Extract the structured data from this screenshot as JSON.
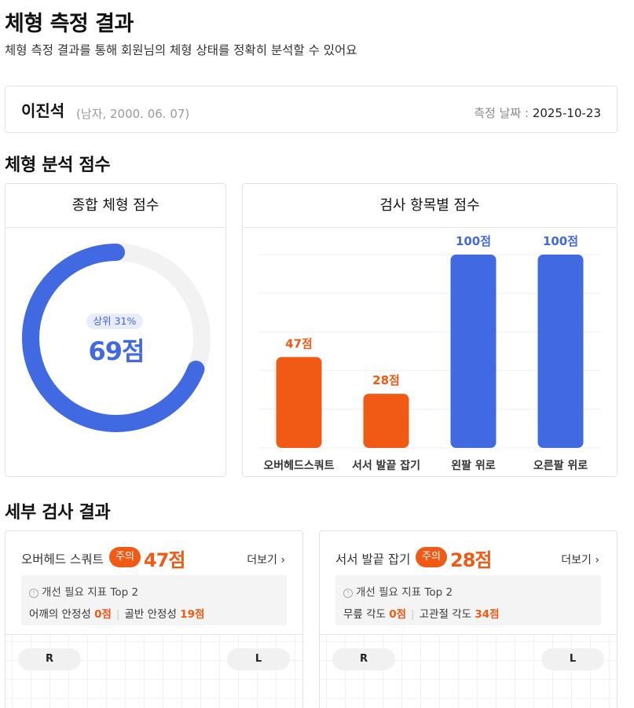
{
  "page": {
    "title": "체형 측정 결과",
    "subtitle": "체형 측정 결과를 통해 회원님의 체형 상태를 정확히 분석할 수 있어요"
  },
  "profile": {
    "name": "이진석",
    "meta": "(남자, 2000. 06. 07)",
    "date_label": "측정 날짜 :",
    "date_value": "2025-10-23"
  },
  "sections": {
    "analysis_title": "체형 분석 점수",
    "detail_title": "세부 검사 결과"
  },
  "total_panel": {
    "title": "종합 체형 점수",
    "rank": "상위 31%",
    "score": "69점",
    "score_value": 69,
    "score_max": 100,
    "accent_color": "#4169e1",
    "track_color": "#f2f2f2"
  },
  "item_panel": {
    "title": "검사 항목별 점수"
  },
  "chart_data": {
    "type": "bar",
    "title": "검사 항목별 점수",
    "categories": [
      "오버헤드스쿼트",
      "서서 발끝 잡기",
      "왼팔 위로",
      "오른팔 위로"
    ],
    "values": [
      47,
      28,
      100,
      100
    ],
    "value_labels": [
      "47점",
      "28점",
      "100점",
      "100점"
    ],
    "colors": [
      "#f05a14",
      "#f05a14",
      "#4169e1",
      "#4169e1"
    ],
    "ylim": [
      0,
      100
    ],
    "grid": true
  },
  "details": [
    {
      "name": "오버헤드 스쿼트",
      "badge": "주의",
      "score": "47점",
      "more": "더보기",
      "improve_title": "개선 필요 지표 Top 2",
      "metrics": [
        {
          "label": "어깨의 안정성",
          "value": "0점"
        },
        {
          "label": "골반 안정성",
          "value": "19점"
        }
      ],
      "left_label": "R",
      "right_label": "L"
    },
    {
      "name": "서서 발끝 잡기",
      "badge": "주의",
      "score": "28점",
      "more": "더보기",
      "improve_title": "개선 필요 지표 Top 2",
      "metrics": [
        {
          "label": "무릎 각도",
          "value": "0점"
        },
        {
          "label": "고관절 각도",
          "value": "34점"
        }
      ],
      "left_label": "R",
      "right_label": "L"
    }
  ],
  "icons": {
    "info": "info-circle-icon",
    "chevron": "chevron-right-icon"
  }
}
